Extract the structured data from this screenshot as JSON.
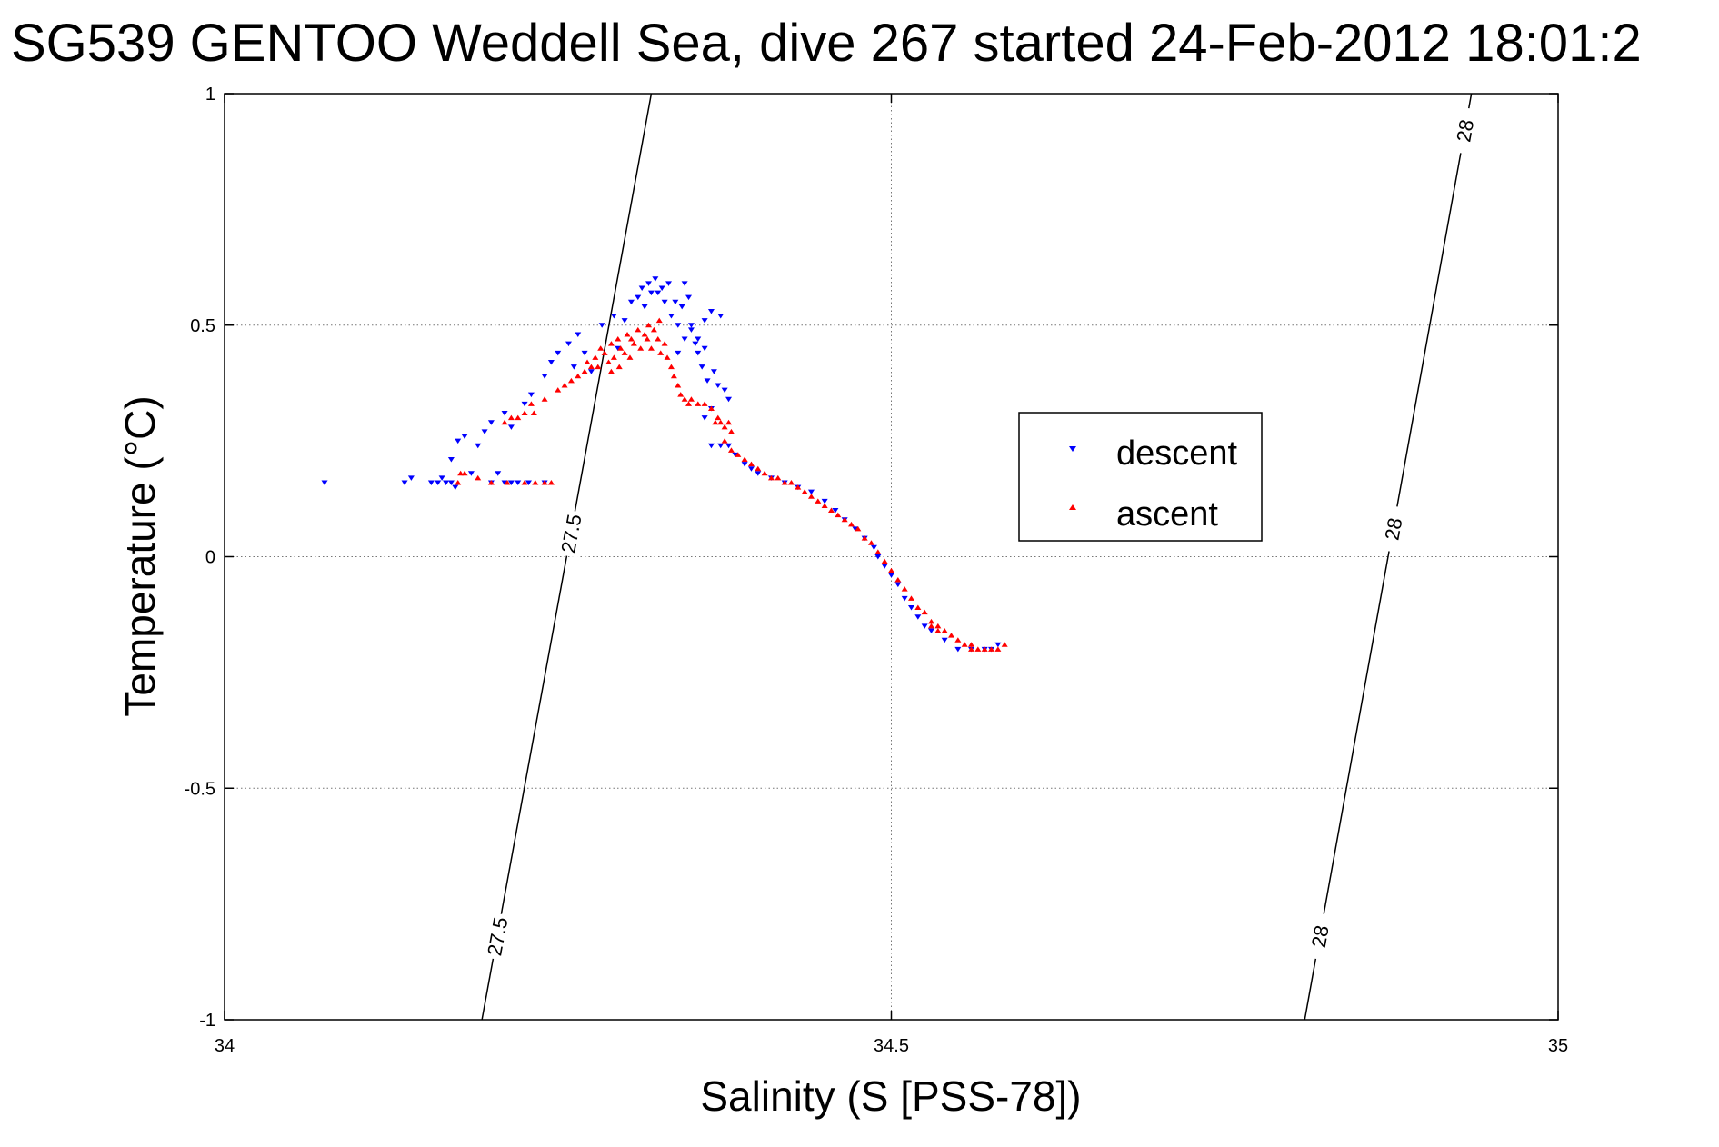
{
  "chart_data": {
    "type": "scatter",
    "title": "SG539 GENTOO Weddell Sea, dive 267 started 24-Feb-2012 18:01:2",
    "xlabel": "Salinity (S [PSS-78])",
    "ylabel": "Temperature (°C)",
    "xlim": [
      34,
      35
    ],
    "ylim": [
      -1,
      1
    ],
    "xticks": [
      34,
      34.5,
      35
    ],
    "xtick_labels": [
      "34",
      "34.5",
      "35"
    ],
    "yticks": [
      1,
      0.5,
      0,
      -0.5,
      -1
    ],
    "ytick_labels": [
      "1",
      "0.5",
      "0",
      "-0.5",
      "-1"
    ],
    "grid": true,
    "legend_position": "center-right",
    "contours": [
      {
        "label": "27.5",
        "points": [
          [
            34.193,
            -1
          ],
          [
            34.32,
            1
          ]
        ],
        "label_positions": [
          [
            34.24,
            -0.82
          ],
          [
            34.255,
            0.05
          ]
        ]
      },
      {
        "label": "28",
        "points": [
          [
            34.81,
            -1
          ],
          [
            34.935,
            1
          ]
        ],
        "label_positions": [
          [
            34.825,
            -0.82
          ],
          [
            34.875,
            0.06
          ],
          [
            34.93,
            0.92
          ]
        ]
      }
    ],
    "series": [
      {
        "name": "descent",
        "color": "#0000ff",
        "marker": "triangle-down",
        "points": [
          [
            34.075,
            0.16
          ],
          [
            34.135,
            0.16
          ],
          [
            34.14,
            0.17
          ],
          [
            34.155,
            0.16
          ],
          [
            34.16,
            0.16
          ],
          [
            34.163,
            0.17
          ],
          [
            34.166,
            0.16
          ],
          [
            34.17,
            0.16
          ],
          [
            34.173,
            0.15
          ],
          [
            34.185,
            0.18
          ],
          [
            34.2,
            0.16
          ],
          [
            34.205,
            0.18
          ],
          [
            34.21,
            0.16
          ],
          [
            34.215,
            0.16
          ],
          [
            34.22,
            0.16
          ],
          [
            34.24,
            0.16
          ],
          [
            34.228,
            0.16
          ],
          [
            34.17,
            0.21
          ],
          [
            34.175,
            0.25
          ],
          [
            34.18,
            0.26
          ],
          [
            34.19,
            0.24
          ],
          [
            34.195,
            0.27
          ],
          [
            34.2,
            0.29
          ],
          [
            34.21,
            0.31
          ],
          [
            34.215,
            0.28
          ],
          [
            34.225,
            0.33
          ],
          [
            34.23,
            0.35
          ],
          [
            34.24,
            0.39
          ],
          [
            34.245,
            0.42
          ],
          [
            34.25,
            0.44
          ],
          [
            34.258,
            0.46
          ],
          [
            34.262,
            0.41
          ],
          [
            34.265,
            0.48
          ],
          [
            34.27,
            0.44
          ],
          [
            34.275,
            0.4
          ],
          [
            34.283,
            0.5
          ],
          [
            34.292,
            0.52
          ],
          [
            34.295,
            0.45
          ],
          [
            34.3,
            0.51
          ],
          [
            34.305,
            0.55
          ],
          [
            34.31,
            0.56
          ],
          [
            34.313,
            0.58
          ],
          [
            34.315,
            0.54
          ],
          [
            34.318,
            0.59
          ],
          [
            34.32,
            0.57
          ],
          [
            34.323,
            0.6
          ],
          [
            34.325,
            0.57
          ],
          [
            34.328,
            0.58
          ],
          [
            34.33,
            0.55
          ],
          [
            34.333,
            0.59
          ],
          [
            34.335,
            0.52
          ],
          [
            34.338,
            0.55
          ],
          [
            34.34,
            0.5
          ],
          [
            34.343,
            0.54
          ],
          [
            34.345,
            0.59
          ],
          [
            34.348,
            0.56
          ],
          [
            34.35,
            0.5
          ],
          [
            34.353,
            0.46
          ],
          [
            34.355,
            0.44
          ],
          [
            34.358,
            0.41
          ],
          [
            34.36,
            0.45
          ],
          [
            34.362,
            0.38
          ],
          [
            34.365,
            0.53
          ],
          [
            34.367,
            0.4
          ],
          [
            34.37,
            0.37
          ],
          [
            34.36,
            0.3
          ],
          [
            34.365,
            0.32
          ],
          [
            34.375,
            0.36
          ],
          [
            34.378,
            0.34
          ],
          [
            34.35,
            0.49
          ],
          [
            34.355,
            0.47
          ],
          [
            34.345,
            0.47
          ],
          [
            34.34,
            0.44
          ],
          [
            34.372,
            0.52
          ],
          [
            34.36,
            0.51
          ],
          [
            34.365,
            0.24
          ],
          [
            34.372,
            0.24
          ],
          [
            34.378,
            0.24
          ],
          [
            34.383,
            0.22
          ],
          [
            34.39,
            0.2
          ],
          [
            34.395,
            0.19
          ],
          [
            34.4,
            0.18
          ],
          [
            34.41,
            0.17
          ],
          [
            34.42,
            0.16
          ],
          [
            34.43,
            0.15
          ],
          [
            34.44,
            0.14
          ],
          [
            34.45,
            0.12
          ],
          [
            34.458,
            0.1
          ],
          [
            34.465,
            0.08
          ],
          [
            34.473,
            0.06
          ],
          [
            34.48,
            0.04
          ],
          [
            34.487,
            0.02
          ],
          [
            34.49,
            0.0
          ],
          [
            34.495,
            -0.02
          ],
          [
            34.5,
            -0.04
          ],
          [
            34.505,
            -0.06
          ],
          [
            34.51,
            -0.09
          ],
          [
            34.515,
            -0.11
          ],
          [
            34.52,
            -0.13
          ],
          [
            34.525,
            -0.15
          ],
          [
            34.53,
            -0.16
          ],
          [
            34.54,
            -0.18
          ],
          [
            34.55,
            -0.2
          ],
          [
            34.56,
            -0.2
          ],
          [
            34.57,
            -0.2
          ],
          [
            34.575,
            -0.2
          ],
          [
            34.58,
            -0.19
          ]
        ]
      },
      {
        "name": "ascent",
        "color": "#ff0000",
        "marker": "triangle-up",
        "points": [
          [
            34.175,
            0.16
          ],
          [
            34.18,
            0.18
          ],
          [
            34.19,
            0.17
          ],
          [
            34.2,
            0.16
          ],
          [
            34.212,
            0.16
          ],
          [
            34.225,
            0.16
          ],
          [
            34.233,
            0.16
          ],
          [
            34.24,
            0.16
          ],
          [
            34.245,
            0.16
          ],
          [
            34.177,
            0.18
          ],
          [
            34.21,
            0.29
          ],
          [
            34.215,
            0.3
          ],
          [
            34.22,
            0.3
          ],
          [
            34.225,
            0.31
          ],
          [
            34.23,
            0.33
          ],
          [
            34.232,
            0.31
          ],
          [
            34.24,
            0.34
          ],
          [
            34.25,
            0.36
          ],
          [
            34.255,
            0.37
          ],
          [
            34.26,
            0.38
          ],
          [
            34.265,
            0.39
          ],
          [
            34.27,
            0.4
          ],
          [
            34.272,
            0.42
          ],
          [
            34.275,
            0.41
          ],
          [
            34.278,
            0.43
          ],
          [
            34.28,
            0.41
          ],
          [
            34.282,
            0.45
          ],
          [
            34.285,
            0.44
          ],
          [
            34.288,
            0.42
          ],
          [
            34.29,
            0.46
          ],
          [
            34.292,
            0.43
          ],
          [
            34.295,
            0.47
          ],
          [
            34.297,
            0.45
          ],
          [
            34.3,
            0.44
          ],
          [
            34.302,
            0.48
          ],
          [
            34.305,
            0.47
          ],
          [
            34.307,
            0.46
          ],
          [
            34.31,
            0.49
          ],
          [
            34.312,
            0.45
          ],
          [
            34.315,
            0.48
          ],
          [
            34.317,
            0.47
          ],
          [
            34.32,
            0.45
          ],
          [
            34.322,
            0.49
          ],
          [
            34.325,
            0.47
          ],
          [
            34.327,
            0.44
          ],
          [
            34.33,
            0.46
          ],
          [
            34.332,
            0.43
          ],
          [
            34.335,
            0.41
          ],
          [
            34.337,
            0.39
          ],
          [
            34.34,
            0.37
          ],
          [
            34.342,
            0.35
          ],
          [
            34.345,
            0.34
          ],
          [
            34.348,
            0.33
          ],
          [
            34.35,
            0.34
          ],
          [
            34.355,
            0.33
          ],
          [
            34.36,
            0.33
          ],
          [
            34.365,
            0.32
          ],
          [
            34.37,
            0.3
          ],
          [
            34.372,
            0.29
          ],
          [
            34.375,
            0.28
          ],
          [
            34.378,
            0.29
          ],
          [
            34.38,
            0.27
          ],
          [
            34.368,
            0.29
          ],
          [
            34.318,
            0.5
          ],
          [
            34.326,
            0.51
          ],
          [
            34.29,
            0.4
          ],
          [
            34.296,
            0.41
          ],
          [
            34.304,
            0.43
          ],
          [
            34.375,
            0.25
          ],
          [
            34.38,
            0.23
          ],
          [
            34.385,
            0.22
          ],
          [
            34.39,
            0.21
          ],
          [
            34.395,
            0.2
          ],
          [
            34.4,
            0.19
          ],
          [
            34.405,
            0.18
          ],
          [
            34.41,
            0.17
          ],
          [
            34.415,
            0.17
          ],
          [
            34.42,
            0.16
          ],
          [
            34.425,
            0.16
          ],
          [
            34.43,
            0.15
          ],
          [
            34.435,
            0.14
          ],
          [
            34.44,
            0.13
          ],
          [
            34.445,
            0.12
          ],
          [
            34.45,
            0.11
          ],
          [
            34.455,
            0.1
          ],
          [
            34.46,
            0.09
          ],
          [
            34.465,
            0.08
          ],
          [
            34.47,
            0.07
          ],
          [
            34.475,
            0.06
          ],
          [
            34.48,
            0.04
          ],
          [
            34.485,
            0.03
          ],
          [
            34.49,
            0.01
          ],
          [
            34.495,
            -0.01
          ],
          [
            34.5,
            -0.03
          ],
          [
            34.505,
            -0.05
          ],
          [
            34.51,
            -0.07
          ],
          [
            34.515,
            -0.09
          ],
          [
            34.52,
            -0.11
          ],
          [
            34.525,
            -0.12
          ],
          [
            34.53,
            -0.14
          ],
          [
            34.535,
            -0.15
          ],
          [
            34.54,
            -0.16
          ],
          [
            34.545,
            -0.17
          ],
          [
            34.55,
            -0.18
          ],
          [
            34.555,
            -0.19
          ],
          [
            34.56,
            -0.2
          ],
          [
            34.565,
            -0.2
          ],
          [
            34.57,
            -0.2
          ],
          [
            34.575,
            -0.2
          ],
          [
            34.58,
            -0.2
          ],
          [
            34.585,
            -0.19
          ],
          [
            34.56,
            -0.19
          ],
          [
            34.535,
            -0.16
          ],
          [
            34.53,
            -0.15
          ]
        ]
      }
    ]
  }
}
